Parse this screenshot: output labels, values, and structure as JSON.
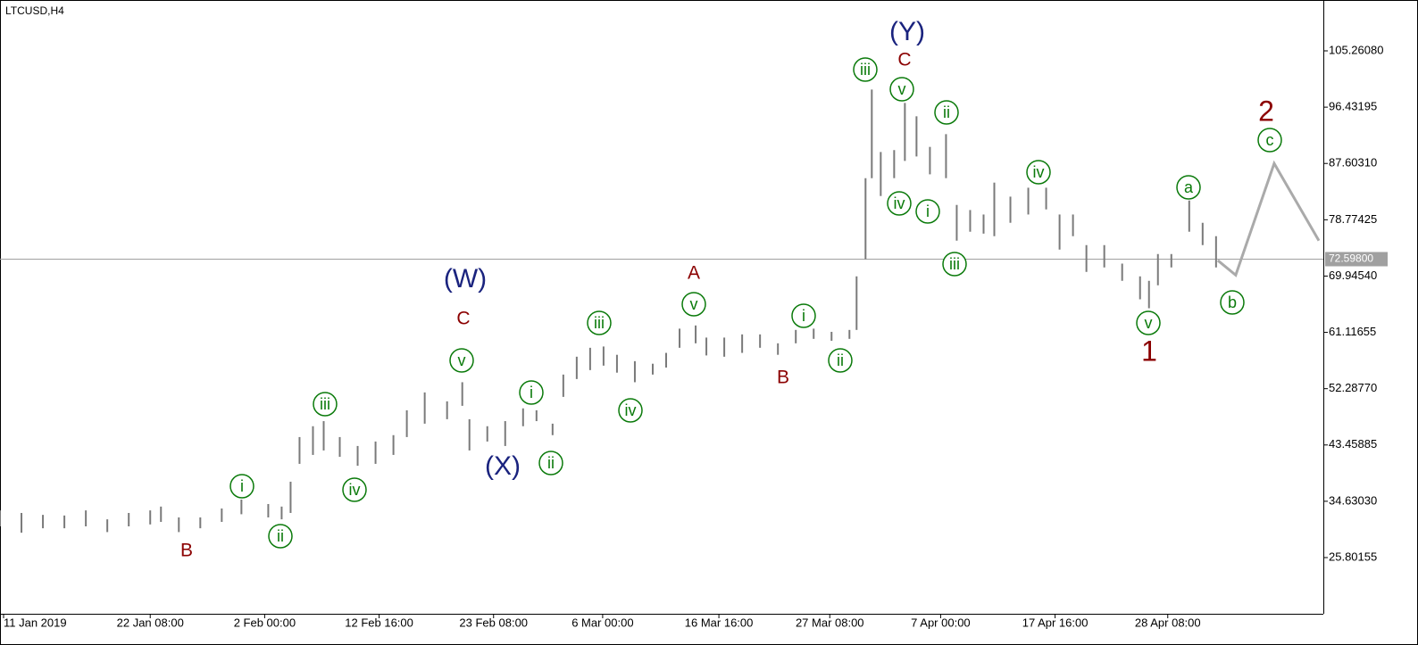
{
  "chart_data": {
    "type": "ohlc",
    "title": "LTCUSD,H4",
    "color": "#7a7a7a",
    "x": [
      0,
      12,
      24,
      36,
      48,
      60,
      72,
      84,
      90,
      100,
      112,
      124,
      135,
      150,
      157.5,
      162.5,
      167.5,
      175,
      181,
      190,
      200,
      210,
      220,
      227.5,
      237.5,
      250,
      258.5,
      262.5,
      272.5,
      282.5,
      292.5,
      300,
      309,
      315,
      322.5,
      330,
      337.5,
      345,
      355,
      365,
      372.5,
      380,
      389,
      395,
      405,
      415,
      425,
      435,
      445,
      455,
      465,
      475,
      479,
      484,
      487.5,
      492.5,
      500,
      506,
      512.5,
      520,
      529,
      535,
      542.5,
      550,
      556,
      565,
      575,
      585,
      592.5,
      600,
      607.5,
      617.5,
      627.5,
      637.5,
      642.5,
      647.5,
      655,
      665,
      672.5,
      680
    ],
    "highs": [
      33.2,
      32.8,
      32.5,
      32.4,
      33.2,
      31.8,
      32.8,
      33.2,
      33.8,
      32.1,
      32.1,
      33.5,
      34.9,
      34.2,
      33.8,
      37.7,
      44.7,
      46.4,
      47.2,
      44.7,
      43.3,
      44.0,
      45.0,
      48.9,
      51.7,
      50.3,
      53.3,
      47.5,
      46.4,
      47.2,
      49.2,
      48.9,
      46.8,
      54.5,
      57.3,
      58.7,
      58.9,
      57.6,
      56.6,
      56.2,
      57.9,
      61.7,
      62.2,
      60.3,
      60.3,
      60.8,
      60.8,
      59.4,
      61.5,
      61.7,
      61.2,
      61.5,
      69.9,
      85.3,
      99.2,
      89.4,
      89.7,
      97.1,
      95.0,
      90.2,
      92.2,
      81.1,
      80.3,
      79.6,
      84.6,
      82.4,
      83.8,
      83.8,
      79.6,
      79.6,
      74.8,
      74.8,
      71.9,
      69.9,
      69.2,
      73.4,
      73.4,
      81.8,
      78.3,
      76.2
    ],
    "lows": [
      30.7,
      29.7,
      30.4,
      30.4,
      30.7,
      29.8,
      30.7,
      31.0,
      31.4,
      29.8,
      30.4,
      31.4,
      32.6,
      32.1,
      31.8,
      32.8,
      40.5,
      41.9,
      42.6,
      41.6,
      40.2,
      40.5,
      41.9,
      44.7,
      46.8,
      47.5,
      49.6,
      42.6,
      44.0,
      43.3,
      46.4,
      47.2,
      45.0,
      51.0,
      53.8,
      55.2,
      55.9,
      54.8,
      53.3,
      54.5,
      55.6,
      58.7,
      59.4,
      57.5,
      57.3,
      57.9,
      58.7,
      57.6,
      59.4,
      60.1,
      59.8,
      60.1,
      61.5,
      72.6,
      85.3,
      82.5,
      85.3,
      88.0,
      88.7,
      85.9,
      85.3,
      75.5,
      76.9,
      76.6,
      76.2,
      78.3,
      79.6,
      80.4,
      74.1,
      76.2,
      70.6,
      71.3,
      69.2,
      66.3,
      64.9,
      68.5,
      71.3,
      76.9,
      74.8,
      71.3
    ],
    "xlim": [
      0,
      740
    ],
    "ylim": [
      16.99,
      113.235
    ],
    "yticks": [
      {
        "value": 25.80155,
        "label": "25.80155"
      },
      {
        "value": 34.6303,
        "label": "34.63030"
      },
      {
        "value": 43.45885,
        "label": "43.45885"
      },
      {
        "value": 52.2877,
        "label": "52.28770"
      },
      {
        "value": 61.11655,
        "label": "61.11655"
      },
      {
        "value": 69.9454,
        "label": "69.94540"
      },
      {
        "value": 78.77425,
        "label": "78.77425"
      },
      {
        "value": 87.6031,
        "label": "87.60310"
      },
      {
        "value": 96.43195,
        "label": "96.43195"
      },
      {
        "value": 105.2608,
        "label": "105.26080"
      }
    ],
    "xticks": [
      {
        "value": 0,
        "label": "11 Jan 2019"
      },
      {
        "value": 82,
        "label": "22 Jan 08:00"
      },
      {
        "value": 146,
        "label": "2 Feb 00:00"
      },
      {
        "value": 210,
        "label": "12 Feb 16:00"
      },
      {
        "value": 274,
        "label": "23 Feb 08:00"
      },
      {
        "value": 335,
        "label": "6 Mar 00:00"
      },
      {
        "value": 400,
        "label": "16 Mar 16:00"
      },
      {
        "value": 462,
        "label": "27 Mar 08:00"
      },
      {
        "value": 524,
        "label": "7 Apr 00:00"
      },
      {
        "value": 588,
        "label": "17 Apr 16:00"
      },
      {
        "value": 651,
        "label": "28 Apr 08:00"
      }
    ],
    "forecast": {
      "color": "#aaaaaa",
      "x": [
        681,
        691,
        712.5,
        737.5
      ],
      "values": [
        72.4,
        70.1,
        87.6,
        75.5
      ]
    },
    "current_price": {
      "value": 72.598,
      "label": "72.59800"
    },
    "annotations": [
      "(Y)",
      "C",
      "iii",
      "v",
      "ii",
      "2",
      "c",
      "iv",
      "a",
      "iv",
      "i",
      "iii",
      "(W)",
      "A",
      "b",
      "v",
      "i",
      "C",
      "iii",
      "v",
      "1",
      "ii",
      "v",
      "B",
      "i",
      "iii",
      "iv",
      "(X)",
      "ii",
      "iv",
      "i",
      "ii",
      "B"
    ]
  }
}
